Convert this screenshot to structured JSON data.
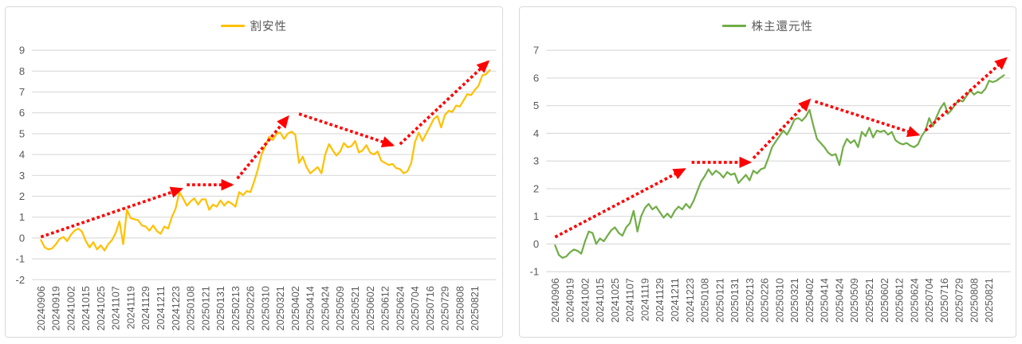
{
  "page": {
    "background": "#FFFFFF"
  },
  "styles": {
    "gridline_color": "#d9d9d9",
    "axis_text_color": "#595959",
    "panel_border_color": "#d9d9d9"
  },
  "chart_data": [
    {
      "type": "line",
      "legend": "割安性",
      "line_color": "#FFC000",
      "trend_arrow_color": "#FF0000",
      "ylim": [
        -2,
        9
      ],
      "y_tick_step": 1,
      "grid": "horizontal",
      "legend_position": "top-center",
      "x_tick_labels": [
        "20240906",
        "20240919",
        "20241002",
        "20241015",
        "20241025",
        "20241107",
        "20241119",
        "20241129",
        "20241211",
        "20241223",
        "20250108",
        "20250121",
        "20250131",
        "20250213",
        "20250226",
        "20250310",
        "20250321",
        "20250402",
        "20250414",
        "20250424",
        "20250509",
        "20250521",
        "20250602",
        "20250612",
        "20250624",
        "20250704",
        "20250716",
        "20250729",
        "20250808",
        "20250821"
      ],
      "x_ticks_every_n_points": 4,
      "values": [
        -0.1,
        -0.45,
        -0.55,
        -0.5,
        -0.3,
        -0.05,
        0.05,
        -0.15,
        0.15,
        0.35,
        0.45,
        0.3,
        -0.15,
        -0.45,
        -0.2,
        -0.55,
        -0.35,
        -0.6,
        -0.3,
        -0.1,
        0.25,
        0.8,
        -0.3,
        1.35,
        0.95,
        0.9,
        0.85,
        0.6,
        0.55,
        0.35,
        0.6,
        0.33,
        0.2,
        0.55,
        0.45,
        1.0,
        1.4,
        2.2,
        1.9,
        1.55,
        1.75,
        1.9,
        1.6,
        1.85,
        1.85,
        1.35,
        1.6,
        1.5,
        1.8,
        1.55,
        1.75,
        1.65,
        1.5,
        2.2,
        2.05,
        2.25,
        2.2,
        2.7,
        3.3,
        4.0,
        4.4,
        4.85,
        4.7,
        5.0,
        5.05,
        4.75,
        5.0,
        5.1,
        4.95,
        3.6,
        3.9,
        3.4,
        3.1,
        3.25,
        3.4,
        3.1,
        4.0,
        4.5,
        4.2,
        3.95,
        4.15,
        4.55,
        4.35,
        4.4,
        4.65,
        4.1,
        4.2,
        4.45,
        4.1,
        4.0,
        4.15,
        3.7,
        3.6,
        3.5,
        3.55,
        3.35,
        3.3,
        3.1,
        3.2,
        3.6,
        4.6,
        5.05,
        4.65,
        5.0,
        5.35,
        5.7,
        5.85,
        5.3,
        5.9,
        6.1,
        6.05,
        6.35,
        6.3,
        6.6,
        6.9,
        6.85,
        7.1,
        7.3,
        7.8,
        7.85,
        8.05
      ],
      "trend_arrows": [
        {
          "from": [
            0,
            0.05
          ],
          "to": [
            37.5,
            2.35
          ]
        },
        {
          "from": [
            39,
            2.55
          ],
          "to": [
            51,
            2.55
          ]
        },
        {
          "from": [
            52.5,
            2.85
          ],
          "to": [
            66,
            5.8
          ]
        },
        {
          "from": [
            69,
            5.95
          ],
          "to": [
            94,
            4.45
          ]
        },
        {
          "from": [
            96,
            4.5
          ],
          "to": [
            119.5,
            8.45
          ]
        }
      ]
    },
    {
      "type": "line",
      "legend": "株主還元性",
      "line_color": "#70AD47",
      "trend_arrow_color": "#FF0000",
      "ylim": [
        -1,
        7
      ],
      "y_tick_step": 1,
      "grid": "horizontal",
      "legend_position": "top-center",
      "x_tick_labels": [
        "20240906",
        "20240919",
        "20241002",
        "20241015",
        "20241025",
        "20241107",
        "20241119",
        "20241129",
        "20241211",
        "20241223",
        "20250108",
        "20250121",
        "20250131",
        "20250213",
        "20250226",
        "20250310",
        "20250321",
        "20250402",
        "20250414",
        "20250424",
        "20250509",
        "20250521",
        "20250602",
        "20250612",
        "20250624",
        "20250704",
        "20250716",
        "20250729",
        "20250808",
        "20250821"
      ],
      "x_ticks_every_n_points": 4,
      "values": [
        -0.05,
        -0.4,
        -0.5,
        -0.45,
        -0.3,
        -0.2,
        -0.25,
        -0.35,
        0.1,
        0.45,
        0.4,
        0.0,
        0.2,
        0.1,
        0.3,
        0.5,
        0.6,
        0.4,
        0.3,
        0.6,
        0.75,
        1.2,
        0.45,
        1.0,
        1.3,
        1.45,
        1.25,
        1.35,
        1.15,
        0.95,
        1.1,
        0.95,
        1.2,
        1.35,
        1.25,
        1.45,
        1.3,
        1.55,
        1.9,
        2.25,
        2.45,
        2.7,
        2.5,
        2.65,
        2.55,
        2.4,
        2.6,
        2.5,
        2.55,
        2.2,
        2.35,
        2.5,
        2.3,
        2.65,
        2.55,
        2.7,
        2.75,
        3.1,
        3.5,
        3.7,
        3.9,
        4.1,
        3.95,
        4.2,
        4.5,
        4.55,
        4.45,
        4.6,
        4.85,
        4.3,
        3.8,
        3.65,
        3.5,
        3.3,
        3.2,
        3.25,
        2.85,
        3.5,
        3.8,
        3.65,
        3.75,
        3.5,
        4.05,
        3.9,
        4.2,
        3.85,
        4.1,
        4.05,
        4.1,
        3.95,
        4.05,
        3.75,
        3.65,
        3.6,
        3.65,
        3.55,
        3.5,
        3.6,
        3.9,
        4.1,
        4.55,
        4.25,
        4.6,
        4.9,
        5.1,
        4.7,
        4.85,
        5.05,
        5.2,
        5.15,
        5.35,
        5.55,
        5.4,
        5.5,
        5.45,
        5.6,
        5.9,
        5.85,
        5.9,
        6.0,
        6.1
      ],
      "trend_arrows": [
        {
          "from": [
            0,
            0.25
          ],
          "to": [
            34.5,
            2.7
          ]
        },
        {
          "from": [
            36.5,
            2.95
          ],
          "to": [
            52,
            2.95
          ]
        },
        {
          "from": [
            53,
            3.1
          ],
          "to": [
            68,
            5.2
          ]
        },
        {
          "from": [
            69.5,
            5.15
          ],
          "to": [
            97,
            3.95
          ]
        },
        {
          "from": [
            99,
            4.1
          ],
          "to": [
            120.5,
            6.7
          ]
        }
      ]
    }
  ]
}
